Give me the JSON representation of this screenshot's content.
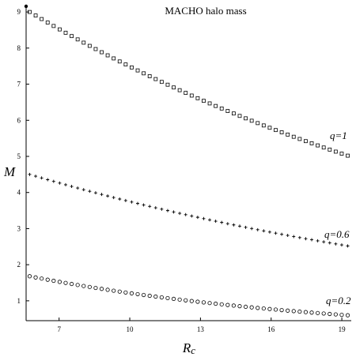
{
  "chart_data": {
    "type": "scatter",
    "title": "MACHO halo mass",
    "xlabel": "R",
    "xlabel_sub": "c",
    "ylabel": "M",
    "xlim": [
      5.6,
      19.4
    ],
    "ylim": [
      0.45,
      9.2
    ],
    "x_ticks": [
      7,
      10,
      13,
      16,
      19
    ],
    "y_ticks": [
      1,
      2,
      3,
      4,
      5,
      6,
      7,
      8,
      9
    ],
    "grid": false,
    "series": [
      {
        "name": "q=1",
        "marker": "square",
        "x_start": 5.75,
        "x_end": 19.25,
        "n": 54,
        "y_start": 9.0,
        "y_end": 5.02
      },
      {
        "name": "q=0.6",
        "marker": "plus",
        "x_start": 5.75,
        "x_end": 19.25,
        "n": 54,
        "y_start": 4.5,
        "y_end": 2.52
      },
      {
        "name": "q=0.2",
        "marker": "circle",
        "x_start": 5.75,
        "x_end": 19.25,
        "n": 54,
        "y_start": 1.68,
        "y_end": 0.6
      }
    ]
  }
}
